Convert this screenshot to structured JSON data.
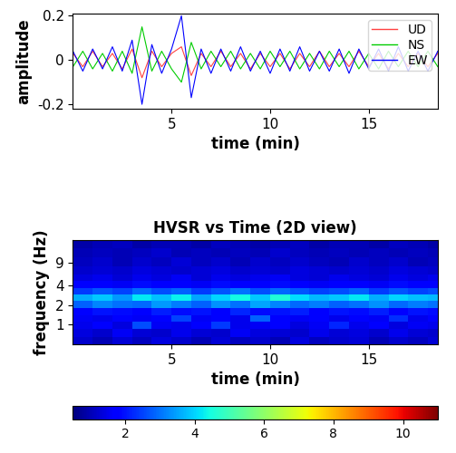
{
  "chart_data": [
    {
      "type": "line",
      "xlabel": "time (min)",
      "ylabel": "amplitude",
      "x": [
        0,
        0.5,
        1,
        1.5,
        2,
        2.5,
        3,
        3.5,
        4,
        4.5,
        5,
        5.5,
        6,
        6.5,
        7,
        7.5,
        8,
        8.5,
        9,
        9.5,
        10,
        10.5,
        11,
        11.5,
        12,
        12.5,
        13,
        13.5,
        14,
        14.5,
        15,
        15.5,
        16,
        16.5,
        17,
        17.5,
        18,
        18.5
      ],
      "series": [
        {
          "name": "UD",
          "color": "#ff4040",
          "values": [
            0.03,
            -0.03,
            0.04,
            -0.03,
            0.03,
            -0.04,
            0.05,
            -0.08,
            0.04,
            -0.03,
            0.03,
            0.06,
            -0.07,
            0.03,
            -0.03,
            0.04,
            -0.03,
            0.03,
            -0.04,
            0.03,
            -0.03,
            0.03,
            -0.04,
            0.03,
            -0.03,
            0.04,
            -0.03,
            0.03,
            -0.03,
            0.04,
            -0.03,
            0.03,
            -0.04,
            0.03,
            -0.03,
            0.03,
            -0.03,
            0.03
          ]
        },
        {
          "name": "NS",
          "color": "#00cc00",
          "values": [
            -0.03,
            0.04,
            -0.04,
            0.03,
            -0.05,
            0.04,
            -0.06,
            0.15,
            -0.05,
            0.04,
            -0.04,
            -0.1,
            0.08,
            -0.04,
            0.04,
            -0.03,
            0.04,
            -0.04,
            0.03,
            -0.04,
            0.04,
            -0.03,
            0.04,
            -0.04,
            0.03,
            -0.04,
            0.04,
            -0.03,
            0.04,
            -0.04,
            0.03,
            -0.04,
            0.04,
            -0.03,
            0.04,
            -0.03,
            0.04,
            -0.03
          ]
        },
        {
          "name": "EW",
          "color": "#0000ff",
          "values": [
            0.04,
            -0.05,
            0.05,
            -0.04,
            0.06,
            -0.05,
            0.09,
            -0.2,
            0.07,
            -0.06,
            0.05,
            0.2,
            -0.17,
            0.05,
            -0.06,
            0.05,
            -0.05,
            0.06,
            -0.05,
            0.04,
            -0.06,
            0.05,
            -0.05,
            0.06,
            -0.05,
            0.04,
            -0.05,
            0.05,
            -0.06,
            0.05,
            -0.04,
            0.05,
            -0.05,
            0.06,
            -0.05,
            0.04,
            -0.05,
            0.04
          ]
        }
      ],
      "xlim": [
        0,
        18.5
      ],
      "xticks": [
        5,
        10,
        15
      ],
      "ylim": [
        -0.22,
        0.21
      ],
      "yticks": [
        -0.2,
        0,
        0.2
      ],
      "legend": "upper right"
    },
    {
      "type": "heatmap",
      "title": "HVSR vs Time (2D view)",
      "xlabel": "time (min)",
      "ylabel": "frequency (Hz)",
      "log": "y",
      "time_edges": [
        0,
        1,
        2,
        3,
        4,
        5,
        6,
        7,
        8,
        9,
        10,
        11,
        12,
        13,
        14,
        15,
        16,
        17,
        18,
        18.5
      ],
      "frequency_edges": [
        0.5,
        0.65,
        0.85,
        1.1,
        1.4,
        1.8,
        2.3,
        2.9,
        3.7,
        4.7,
        6,
        8,
        11,
        15,
        20
      ],
      "cells": [
        [
          1.2,
          1.0,
          1.3,
          1.1,
          1.4,
          1.2,
          1.0,
          1.3,
          1.1,
          1.2,
          1.0,
          1.4,
          1.1,
          1.2,
          1.3,
          1.0,
          1.2,
          1.1,
          1.3
        ],
        [
          1.4,
          1.2,
          1.6,
          1.3,
          1.2,
          1.5,
          1.3,
          1.2,
          1.6,
          1.4,
          1.3,
          1.2,
          1.5,
          1.3,
          1.4,
          1.2,
          1.5,
          1.3,
          1.2
        ],
        [
          1.5,
          1.8,
          1.4,
          2.6,
          1.6,
          1.5,
          1.7,
          2.4,
          1.5,
          1.6,
          1.8,
          1.4,
          1.6,
          2.2,
          1.5,
          1.7,
          1.4,
          1.6,
          1.5
        ],
        [
          1.6,
          1.5,
          1.8,
          1.6,
          1.7,
          2.5,
          1.6,
          1.8,
          1.5,
          2.8,
          1.7,
          1.6,
          1.8,
          1.5,
          1.7,
          1.6,
          2.3,
          1.5,
          1.7
        ],
        [
          1.8,
          2.0,
          1.9,
          1.8,
          2.1,
          1.9,
          2.0,
          1.8,
          2.2,
          1.9,
          2.0,
          2.1,
          1.8,
          2.0,
          1.9,
          2.1,
          1.8,
          2.0,
          1.9
        ],
        [
          2.8,
          3.2,
          3.0,
          2.9,
          3.4,
          3.1,
          2.8,
          3.3,
          3.0,
          3.5,
          3.2,
          2.9,
          3.1,
          2.8,
          3.0,
          3.3,
          2.9,
          3.1,
          3.0
        ],
        [
          3.6,
          3.9,
          3.4,
          4.2,
          3.8,
          4.3,
          3.5,
          4.0,
          4.4,
          3.9,
          4.6,
          4.1,
          3.7,
          3.9,
          4.2,
          3.6,
          4.0,
          3.8,
          3.7
        ],
        [
          2.4,
          2.7,
          2.5,
          2.9,
          2.6,
          2.8,
          2.4,
          2.7,
          3.0,
          2.6,
          2.9,
          2.7,
          2.5,
          2.6,
          2.8,
          2.4,
          2.7,
          2.5,
          2.6
        ],
        [
          1.7,
          1.8,
          1.6,
          1.9,
          1.7,
          1.8,
          1.6,
          1.9,
          1.8,
          1.7,
          1.9,
          1.8,
          1.6,
          1.7,
          1.8,
          1.6,
          1.9,
          1.7,
          1.8
        ],
        [
          1.4,
          1.5,
          1.3,
          1.5,
          1.4,
          1.6,
          1.3,
          1.5,
          1.4,
          1.5,
          1.6,
          1.4,
          1.3,
          1.5,
          1.4,
          1.3,
          1.5,
          1.4,
          1.5
        ],
        [
          1.2,
          1.3,
          1.2,
          1.4,
          1.3,
          1.2,
          1.3,
          1.4,
          1.2,
          1.3,
          1.2,
          1.4,
          1.3,
          1.2,
          1.3,
          1.2,
          1.4,
          1.3,
          1.2
        ],
        [
          1.1,
          1.2,
          1.0,
          1.2,
          1.1,
          1.3,
          1.1,
          1.2,
          1.0,
          1.2,
          1.1,
          1.2,
          1.1,
          1.0,
          1.2,
          1.1,
          1.2,
          1.0,
          1.1
        ],
        [
          1.0,
          1.1,
          1.0,
          1.1,
          1.2,
          1.0,
          1.1,
          1.0,
          1.1,
          1.0,
          1.2,
          1.1,
          1.0,
          1.1,
          1.0,
          1.1,
          1.0,
          1.1,
          1.0
        ],
        [
          0.9,
          1.0,
          1.1,
          0.9,
          1.0,
          1.0,
          0.9,
          1.1,
          1.0,
          0.9,
          1.0,
          1.1,
          0.9,
          1.0,
          1.0,
          0.9,
          1.1,
          1.0,
          0.9
        ]
      ],
      "xlim": [
        0,
        18.5
      ],
      "xticks": [
        5,
        10,
        15
      ],
      "ylim": [
        0.5,
        20
      ],
      "yticks": [
        1,
        2,
        4,
        9
      ],
      "colorbar_range": [
        0.5,
        11
      ],
      "colorbar_ticks": [
        2,
        4,
        6,
        8,
        10
      ]
    }
  ]
}
